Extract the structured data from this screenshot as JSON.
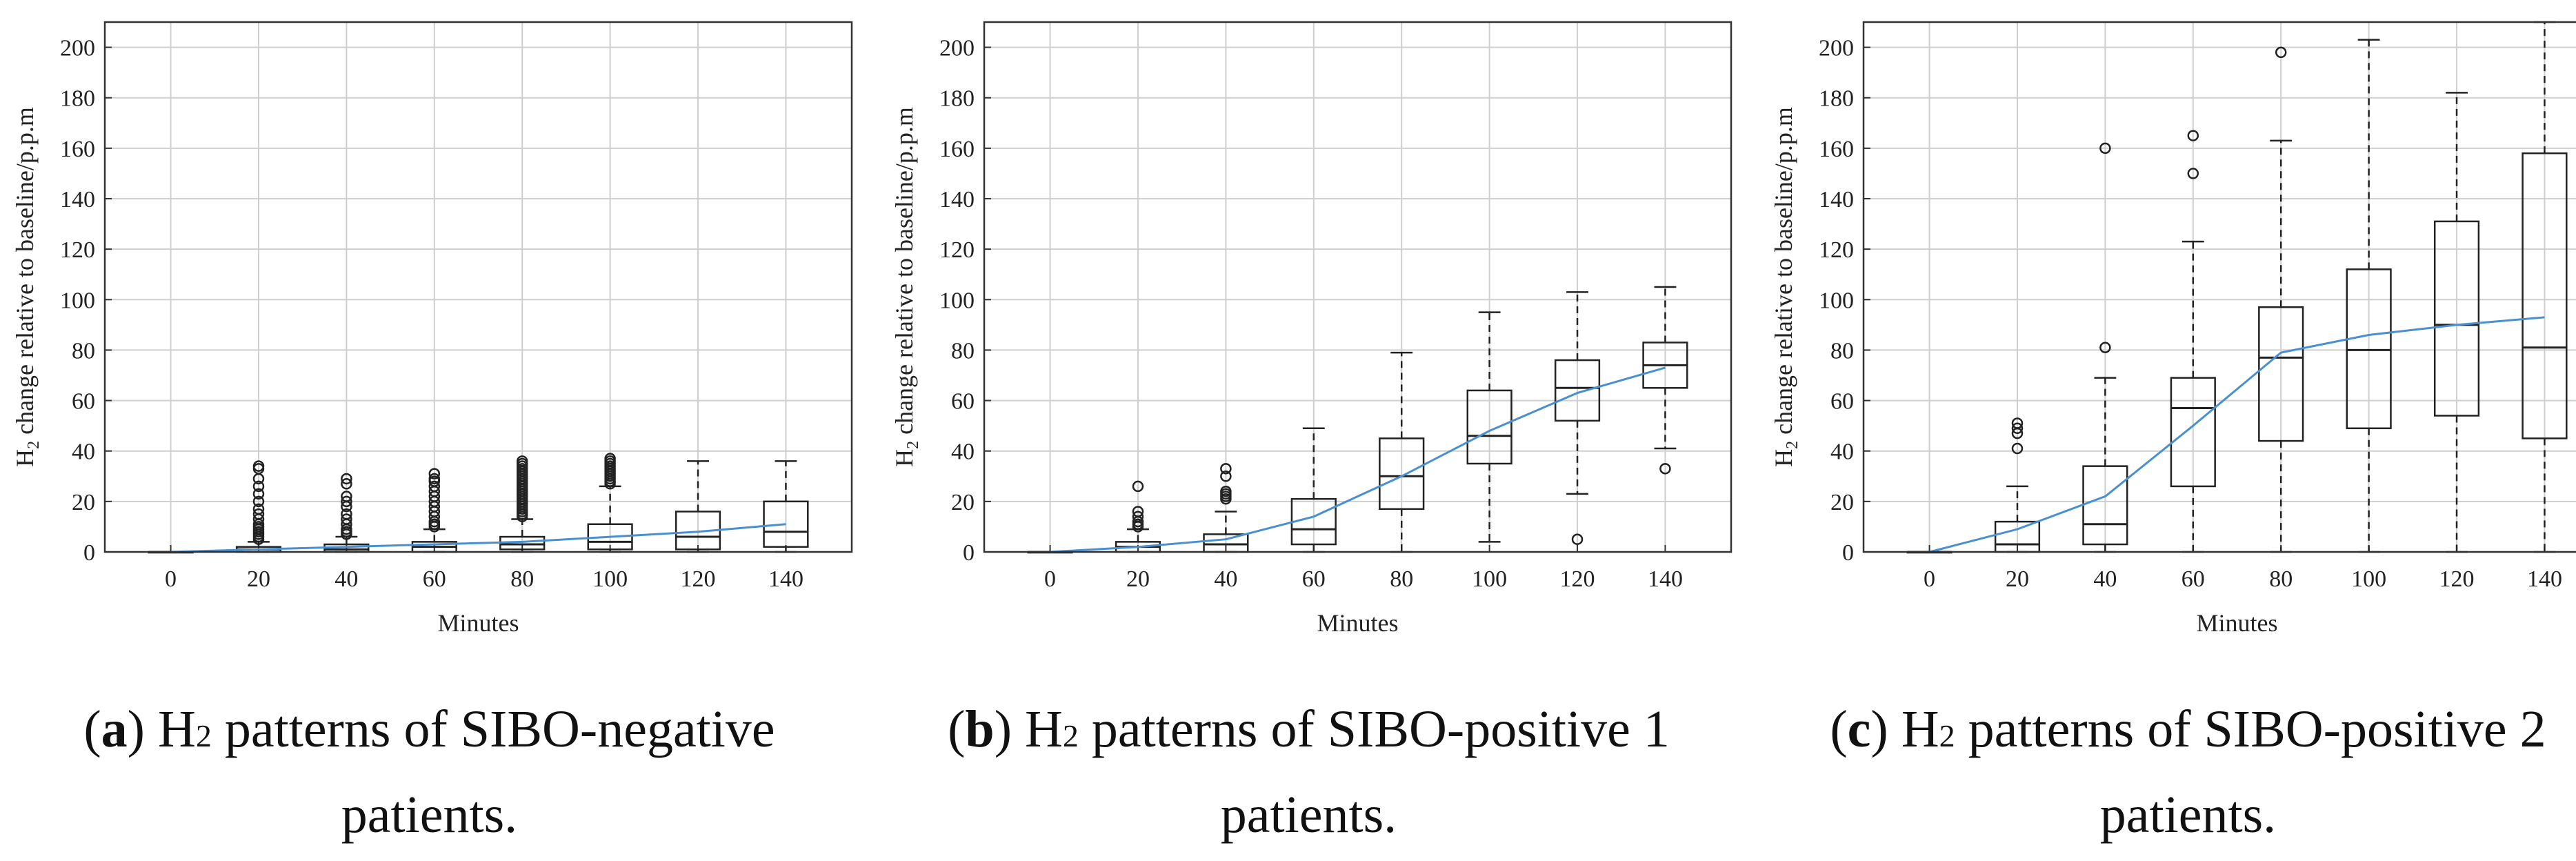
{
  "chart_data": [
    {
      "type": "box",
      "panel": "a",
      "xlabel": "Minutes",
      "ylabel": "H{2} change relative to baseline/p.p.m",
      "ylabel_main": "H",
      "ylabel_sub": "2",
      "ylabel_rest": " change relative to baseline/p.p.m",
      "ylim": [
        0,
        210
      ],
      "yticks": [
        0,
        20,
        40,
        60,
        80,
        100,
        120,
        140,
        160,
        180,
        200
      ],
      "categories": [
        "0",
        "20",
        "40",
        "60",
        "80",
        "100",
        "120",
        "140"
      ],
      "boxes": [
        {
          "min": 0,
          "q1": 0,
          "median": 0,
          "q3": 0,
          "max": 0,
          "outliers": []
        },
        {
          "min": 0,
          "q1": 0,
          "median": 1,
          "q3": 2,
          "max": 4,
          "outliers": [
            5,
            6,
            7,
            8,
            9,
            10,
            11,
            13,
            15,
            17,
            20,
            23,
            26,
            29,
            33,
            34
          ]
        },
        {
          "min": 0,
          "q1": 0,
          "median": 1,
          "q3": 3,
          "max": 6,
          "outliers": [
            7,
            8,
            9,
            11,
            13,
            15,
            18,
            20,
            22,
            27,
            29
          ]
        },
        {
          "min": 0,
          "q1": 0,
          "median": 2,
          "q3": 4,
          "max": 9,
          "outliers": [
            10,
            11,
            12,
            14,
            16,
            18,
            20,
            22,
            24,
            26,
            28,
            29,
            31
          ]
        },
        {
          "min": 0,
          "q1": 1,
          "median": 3,
          "q3": 6,
          "max": 13,
          "outliers": [
            14,
            15,
            16,
            17,
            18,
            19,
            20,
            21,
            22,
            23,
            24,
            25,
            26,
            27,
            28,
            29,
            30,
            31,
            32,
            33,
            34,
            35,
            36
          ]
        },
        {
          "min": 0,
          "q1": 1,
          "median": 4,
          "q3": 11,
          "max": 26,
          "outliers": [
            27,
            28,
            29,
            30,
            31,
            32,
            33,
            34,
            35,
            36,
            37
          ]
        },
        {
          "min": 0,
          "q1": 1,
          "median": 6,
          "q3": 16,
          "max": 36,
          "outliers": []
        },
        {
          "min": 0,
          "q1": 2,
          "median": 8,
          "q3": 20,
          "max": 36,
          "outliers": []
        }
      ],
      "mean_line": [
        0,
        1,
        2,
        3,
        4,
        6,
        8,
        11
      ]
    },
    {
      "type": "box",
      "panel": "b",
      "xlabel": "Minutes",
      "ylabel": "H{2} change relative to baseline/p.p.m",
      "ylabel_main": "H",
      "ylabel_sub": "2",
      "ylabel_rest": " change relative to baseline/p.p.m",
      "ylim": [
        0,
        210
      ],
      "yticks": [
        0,
        20,
        40,
        60,
        80,
        100,
        120,
        140,
        160,
        180,
        200
      ],
      "categories": [
        "0",
        "20",
        "40",
        "60",
        "80",
        "100",
        "120",
        "140"
      ],
      "boxes": [
        {
          "min": 0,
          "q1": 0,
          "median": 0,
          "q3": 0,
          "max": 0,
          "outliers": []
        },
        {
          "min": 0,
          "q1": 0,
          "median": 2,
          "q3": 4,
          "max": 9,
          "outliers": [
            10,
            11,
            12,
            14,
            16,
            26
          ]
        },
        {
          "min": 0,
          "q1": 0,
          "median": 3,
          "q3": 7,
          "max": 16,
          "outliers": [
            21,
            22,
            23,
            24,
            30,
            33
          ]
        },
        {
          "min": 0,
          "q1": 3,
          "median": 9,
          "q3": 21,
          "max": 49,
          "outliers": []
        },
        {
          "min": 0,
          "q1": 17,
          "median": 30,
          "q3": 45,
          "max": 79,
          "outliers": []
        },
        {
          "min": 4,
          "q1": 35,
          "median": 46,
          "q3": 64,
          "max": 95,
          "outliers": []
        },
        {
          "min": 23,
          "q1": 52,
          "median": 65,
          "q3": 76,
          "max": 103,
          "outliers": [
            5
          ]
        },
        {
          "min": 41,
          "q1": 65,
          "median": 74,
          "q3": 83,
          "max": 105,
          "outliers": [
            33
          ]
        }
      ],
      "mean_line": [
        0,
        2,
        5,
        14,
        30,
        48,
        63,
        73
      ]
    },
    {
      "type": "box",
      "panel": "c",
      "xlabel": "Minutes",
      "ylabel": "H{2} change relative to baseline/p.p.m",
      "ylabel_main": "H",
      "ylabel_sub": "2",
      "ylabel_rest": " change relative to baseline/p.p.m",
      "ylim": [
        0,
        210
      ],
      "yticks": [
        0,
        20,
        40,
        60,
        80,
        100,
        120,
        140,
        160,
        180,
        200
      ],
      "categories": [
        "0",
        "20",
        "40",
        "60",
        "80",
        "100",
        "120",
        "140"
      ],
      "boxes": [
        {
          "min": 0,
          "q1": 0,
          "median": 0,
          "q3": 0,
          "max": 0,
          "outliers": []
        },
        {
          "min": 0,
          "q1": 0,
          "median": 3,
          "q3": 12,
          "max": 26,
          "outliers": [
            41,
            47,
            49,
            51
          ]
        },
        {
          "min": 0,
          "q1": 3,
          "median": 11,
          "q3": 34,
          "max": 69,
          "outliers": [
            81,
            160
          ]
        },
        {
          "min": 0,
          "q1": 26,
          "median": 57,
          "q3": 69,
          "max": 123,
          "outliers": [
            150,
            165
          ]
        },
        {
          "min": 0,
          "q1": 44,
          "median": 77,
          "q3": 97,
          "max": 163,
          "outliers": [
            198
          ]
        },
        {
          "min": 0,
          "q1": 49,
          "median": 80,
          "q3": 112,
          "max": 203,
          "outliers": []
        },
        {
          "min": 0,
          "q1": 54,
          "median": 90,
          "q3": 131,
          "max": 182,
          "outliers": []
        },
        {
          "min": 0,
          "q1": 45,
          "median": 81,
          "q3": 158,
          "max": 210,
          "outliers": []
        }
      ],
      "mean_line": [
        0,
        9,
        22,
        50,
        79,
        86,
        90,
        93
      ]
    }
  ],
  "captions": [
    {
      "letter": "a",
      "open": "(",
      "close": ")",
      "pre": " H",
      "sub": "2",
      "post": " patterns of SIBO-negative",
      "line2": "patients."
    },
    {
      "letter": "b",
      "open": "(",
      "close": ")",
      "pre": " H",
      "sub": "2",
      "post": " patterns of SIBO-positive 1",
      "line2": "patients."
    },
    {
      "letter": "c",
      "open": "(",
      "close": ")",
      "pre": " H",
      "sub": "2",
      "post": " patterns of SIBO-positive 2",
      "line2": "patients."
    }
  ],
  "colors": {
    "mean_line": "#4a90d0",
    "box": "#222222",
    "grid": "#cfcfcf",
    "frame": "#333333"
  }
}
